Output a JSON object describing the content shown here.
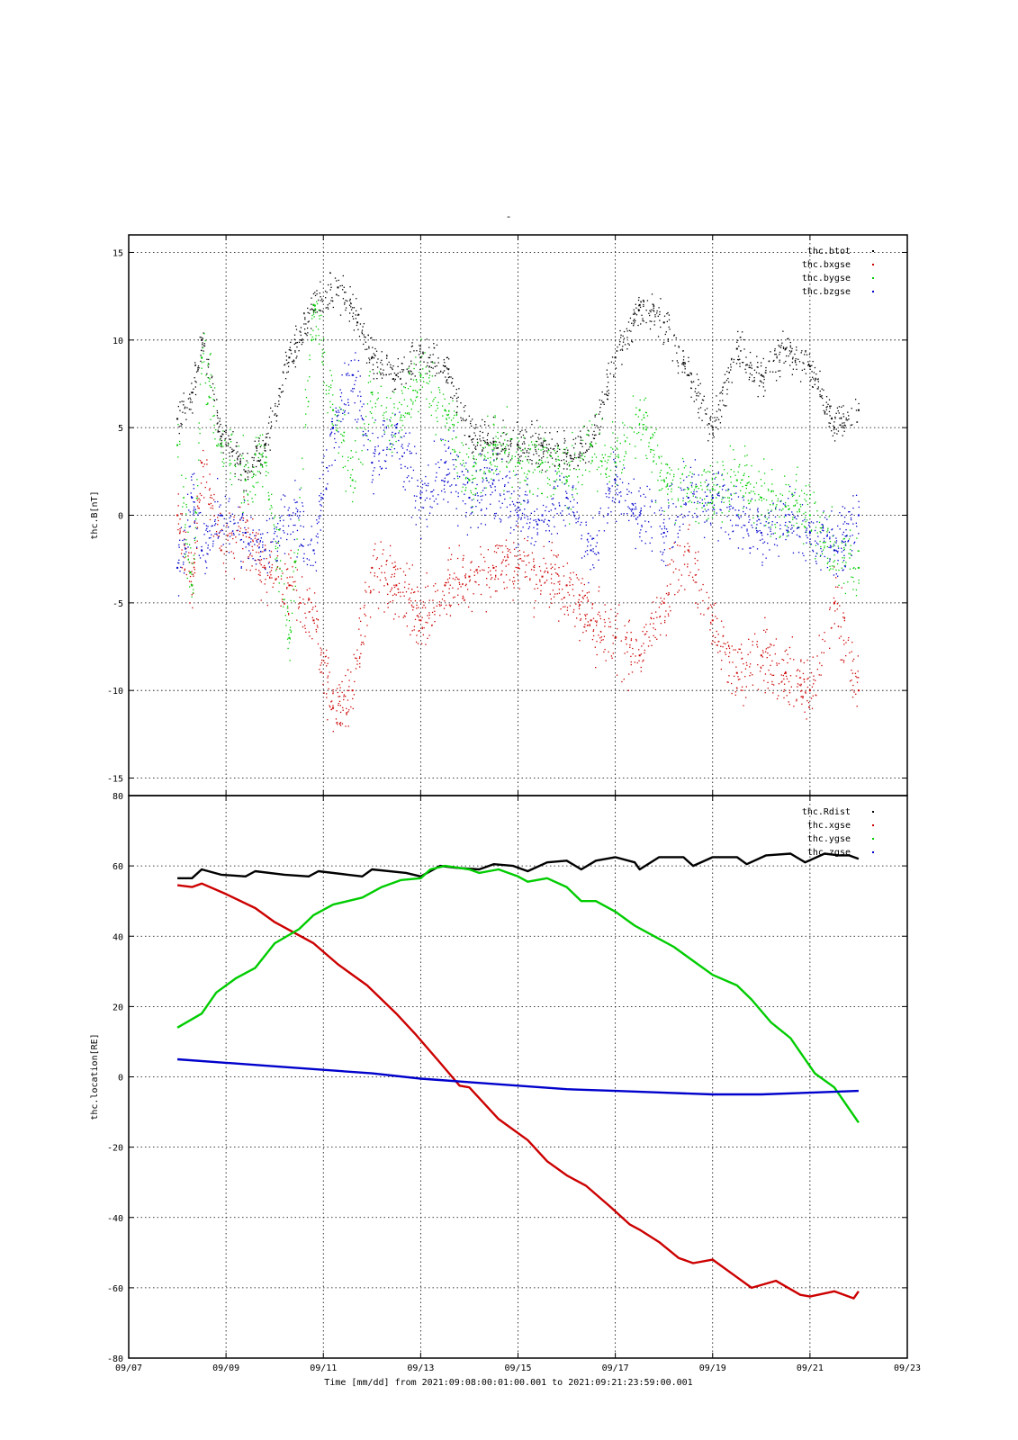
{
  "header": {
    "title": "-"
  },
  "x_axis": {
    "label": "Time [mm/dd]  from 2021:09:08:00:01:00.001  to  2021:09:21:23:59:00.001",
    "range_days": [
      7,
      23
    ],
    "ticks": [
      {
        "day": 7,
        "label": "09/07"
      },
      {
        "day": 9,
        "label": "09/09"
      },
      {
        "day": 11,
        "label": "09/11"
      },
      {
        "day": 13,
        "label": "09/13"
      },
      {
        "day": 15,
        "label": "09/15"
      },
      {
        "day": 17,
        "label": "09/17"
      },
      {
        "day": 19,
        "label": "09/19"
      },
      {
        "day": 21,
        "label": "09/21"
      },
      {
        "day": 23,
        "label": "09/23"
      }
    ]
  },
  "chart_data": [
    {
      "type": "scatter",
      "ylabel": "thc.B[nT]",
      "ylim": [
        -16,
        16
      ],
      "yticks": [
        -15,
        -10,
        -5,
        0,
        5,
        10,
        15
      ],
      "grid": true,
      "legend_position": "top-right",
      "series": [
        {
          "name": "thc.btot",
          "color": "#000000",
          "x": [
            8.0,
            8.3,
            8.5,
            8.9,
            9.4,
            9.8,
            10.3,
            10.8,
            11.3,
            11.7,
            12.0,
            12.5,
            13.0,
            13.5,
            14.0,
            14.5,
            15.0,
            15.5,
            16.0,
            16.5,
            17.0,
            17.5,
            18.0,
            18.5,
            19.0,
            19.5,
            20.0,
            20.5,
            21.0,
            21.5,
            22.0
          ],
          "y": [
            5.5,
            7.0,
            10.0,
            4.5,
            2.5,
            4.0,
            9.0,
            12.0,
            13.0,
            11.0,
            9.0,
            8.0,
            9.0,
            8.5,
            4.5,
            4.2,
            4.0,
            4.0,
            3.5,
            4.0,
            9.0,
            12.0,
            11.0,
            8.0,
            5.0,
            9.5,
            8.0,
            9.5,
            8.5,
            5.0,
            6.0
          ]
        },
        {
          "name": "thc.bxgse",
          "color": "#cc0000",
          "x": [
            8.0,
            8.3,
            8.5,
            8.9,
            9.4,
            9.8,
            10.3,
            10.8,
            11.2,
            11.6,
            12.0,
            12.5,
            13.0,
            13.5,
            14.0,
            14.5,
            15.0,
            15.5,
            16.0,
            16.5,
            17.0,
            17.5,
            18.0,
            18.5,
            19.0,
            19.5,
            20.0,
            20.5,
            21.0,
            21.5,
            22.0
          ],
          "y": [
            0.0,
            -4.0,
            3.0,
            -2.0,
            -1.0,
            -3.0,
            -4.0,
            -6.0,
            -11.0,
            -10.0,
            -3.0,
            -4.0,
            -6.0,
            -4.0,
            -3.5,
            -3.0,
            -3.0,
            -3.5,
            -4.0,
            -6.0,
            -7.0,
            -8.0,
            -5.0,
            -2.0,
            -6.0,
            -9.0,
            -8.0,
            -9.0,
            -10.0,
            -5.0,
            -10.0
          ]
        },
        {
          "name": "thc.bygse",
          "color": "#00cc00",
          "x": [
            8.0,
            8.3,
            8.5,
            8.9,
            9.4,
            9.8,
            10.3,
            10.8,
            11.2,
            11.6,
            12.0,
            12.5,
            13.0,
            13.5,
            14.0,
            14.5,
            15.0,
            15.5,
            16.0,
            16.5,
            17.0,
            17.5,
            18.0,
            18.5,
            19.0,
            19.5,
            20.0,
            20.5,
            21.0,
            21.5,
            22.0
          ],
          "y": [
            4.0,
            -4.0,
            9.0,
            4.0,
            2.0,
            3.0,
            -7.0,
            12.0,
            6.0,
            2.0,
            7.0,
            5.0,
            8.0,
            6.0,
            2.0,
            4.0,
            3.0,
            3.0,
            2.0,
            4.0,
            3.0,
            6.0,
            2.0,
            1.5,
            1.5,
            2.0,
            1.0,
            0.5,
            0.0,
            -2.0,
            -3.0
          ]
        },
        {
          "name": "thc.bzgse",
          "color": "#0000cc",
          "x": [
            8.0,
            8.3,
            8.5,
            8.9,
            9.4,
            9.8,
            10.3,
            10.8,
            11.2,
            11.6,
            12.0,
            12.5,
            13.0,
            13.5,
            14.0,
            14.5,
            15.0,
            15.5,
            16.0,
            16.5,
            17.0,
            17.5,
            18.0,
            18.5,
            19.0,
            19.5,
            20.0,
            20.5,
            21.0,
            21.5,
            22.0
          ],
          "y": [
            -3.0,
            1.0,
            -2.0,
            0.0,
            -1.0,
            -2.0,
            0.0,
            -2.0,
            5.0,
            8.0,
            3.0,
            5.0,
            1.0,
            3.0,
            1.0,
            2.0,
            0.0,
            0.0,
            1.0,
            -2.0,
            2.0,
            0.0,
            -1.0,
            1.0,
            1.0,
            0.0,
            -1.0,
            0.0,
            -1.0,
            -2.0,
            0.0
          ]
        }
      ]
    },
    {
      "type": "line",
      "ylabel": "thc.location[RE]",
      "ylim": [
        -80,
        80
      ],
      "yticks": [
        -80,
        -60,
        -40,
        -20,
        0,
        20,
        40,
        60,
        80
      ],
      "grid": true,
      "legend_position": "top-right",
      "series": [
        {
          "name": "thc.Rdist",
          "color": "#000000",
          "x": [
            8.0,
            8.3,
            8.5,
            8.9,
            9.4,
            9.6,
            10.2,
            10.7,
            10.9,
            11.5,
            11.8,
            12.0,
            12.7,
            13.0,
            13.4,
            13.7,
            14.2,
            14.5,
            14.9,
            15.2,
            15.6,
            16.0,
            16.3,
            16.6,
            17.0,
            17.4,
            17.5,
            17.9,
            18.4,
            18.6,
            19.0,
            19.5,
            19.7,
            20.1,
            20.6,
            20.9,
            21.3,
            21.6,
            21.8,
            22.0
          ],
          "y": [
            56.5,
            56.5,
            59.0,
            57.5,
            57.0,
            58.5,
            57.5,
            57.0,
            58.5,
            57.5,
            57.0,
            59.0,
            58.0,
            57.0,
            60.0,
            59.5,
            59.0,
            60.5,
            60.0,
            58.5,
            61.0,
            61.5,
            59.0,
            61.5,
            62.5,
            61.0,
            59.0,
            62.5,
            62.5,
            60.0,
            62.5,
            62.5,
            60.5,
            63.0,
            63.5,
            61.0,
            63.5,
            63.0,
            63.0,
            62.0
          ]
        },
        {
          "name": "thc.xgse",
          "color": "#cc0000",
          "x": [
            8.0,
            8.3,
            8.5,
            9.0,
            9.6,
            10.0,
            10.8,
            11.3,
            11.9,
            12.5,
            12.9,
            13.4,
            13.8,
            14.0,
            14.6,
            15.2,
            15.6,
            16.0,
            16.4,
            16.9,
            17.3,
            17.5,
            17.9,
            18.3,
            18.6,
            19.0,
            19.5,
            19.8,
            20.3,
            20.8,
            21.0,
            21.5,
            21.9,
            22.0
          ],
          "y": [
            54.5,
            54.0,
            55.0,
            52.0,
            48.0,
            44.0,
            38.0,
            32.0,
            26.0,
            18.0,
            12.0,
            4.0,
            -2.5,
            -3.0,
            -12.0,
            -18.0,
            -24.0,
            -28.0,
            -31.0,
            -37.0,
            -42.0,
            -43.5,
            -47.0,
            -51.5,
            -53.0,
            -52.0,
            -57.0,
            -60.0,
            -58.0,
            -62.0,
            -62.5,
            -61.0,
            -63.0,
            -61.0
          ]
        },
        {
          "name": "thc.ygse",
          "color": "#00cc00",
          "x": [
            8.0,
            8.5,
            8.8,
            9.2,
            9.6,
            10.0,
            10.5,
            10.8,
            11.2,
            11.8,
            12.2,
            12.6,
            13.0,
            13.2,
            13.5,
            14.0,
            14.2,
            14.6,
            15.0,
            15.2,
            15.6,
            16.0,
            16.3,
            16.6,
            17.0,
            17.4,
            17.8,
            18.2,
            18.6,
            19.0,
            19.5,
            19.8,
            20.2,
            20.6,
            20.9,
            21.1,
            21.5,
            22.0
          ],
          "y": [
            14.0,
            18.0,
            24.0,
            28.0,
            31.0,
            38.0,
            42.0,
            46.0,
            49.0,
            51.0,
            54.0,
            56.0,
            56.5,
            59.0,
            60.0,
            59.0,
            58.0,
            59.0,
            57.0,
            55.5,
            56.5,
            54.0,
            50.0,
            50.0,
            47.0,
            43.0,
            40.0,
            37.0,
            33.0,
            29.0,
            26.0,
            22.0,
            15.5,
            11.0,
            5.0,
            1.0,
            -3.0,
            -13.0
          ]
        },
        {
          "name": "thc.zgse",
          "color": "#0000cc",
          "x": [
            8.0,
            9.0,
            10.0,
            11.0,
            12.0,
            13.0,
            14.0,
            15.0,
            16.0,
            17.0,
            18.0,
            19.0,
            20.0,
            21.0,
            22.0
          ],
          "y": [
            5.0,
            4.0,
            3.0,
            2.0,
            1.0,
            -0.5,
            -1.5,
            -2.5,
            -3.5,
            -4.0,
            -4.5,
            -5.0,
            -5.0,
            -4.5,
            -4.0
          ]
        }
      ]
    }
  ]
}
